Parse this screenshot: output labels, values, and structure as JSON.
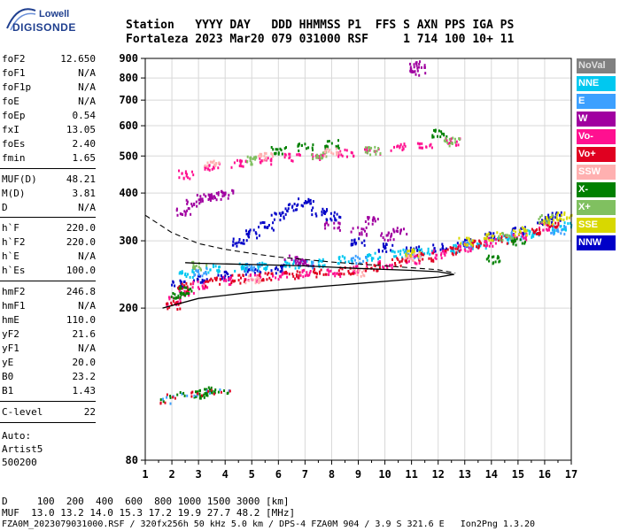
{
  "logo": {
    "line1": "Lowell",
    "line2": "DIGISONDE"
  },
  "header": {
    "row1": "Station   YYYY DAY   DDD HHMMSS P1  FFS S AXN PPS IGA PS",
    "row2": "Fortaleza 2023 Mar20 079 031000 RSF     1 714 100 10+ 11"
  },
  "params": {
    "g1": [
      {
        "name": "foF2",
        "value": "12.650"
      },
      {
        "name": "foF1",
        "value": "N/A"
      },
      {
        "name": "foF1p",
        "value": "N/A"
      },
      {
        "name": "foE",
        "value": "N/A"
      },
      {
        "name": "foEp",
        "value": "0.54"
      },
      {
        "name": "fxI",
        "value": "13.05"
      },
      {
        "name": "foEs",
        "value": "2.40"
      },
      {
        "name": "fmin",
        "value": "1.65"
      }
    ],
    "g2": [
      {
        "name": "MUF(D)",
        "value": "48.21"
      },
      {
        "name": "M(D)",
        "value": "3.81"
      },
      {
        "name": "D",
        "value": "N/A"
      }
    ],
    "g3": [
      {
        "name": "h`F",
        "value": "220.0"
      },
      {
        "name": "h`F2",
        "value": "220.0"
      },
      {
        "name": "h`E",
        "value": "N/A"
      },
      {
        "name": "h`Es",
        "value": "100.0"
      }
    ],
    "g4": [
      {
        "name": "hmF2",
        "value": "246.8"
      },
      {
        "name": "hmF1",
        "value": "N/A"
      },
      {
        "name": "hmE",
        "value": "110.0"
      },
      {
        "name": "yF2",
        "value": "21.6"
      },
      {
        "name": "yF1",
        "value": "N/A"
      },
      {
        "name": "yE",
        "value": "20.0"
      },
      {
        "name": "B0",
        "value": "23.2"
      },
      {
        "name": "B1",
        "value": "1.43"
      }
    ],
    "g5": [
      {
        "name": "C-level",
        "value": "22"
      }
    ]
  },
  "auto": {
    "line1": "Auto:",
    "line2": "Artist5",
    "line3": "500200"
  },
  "footer": {
    "d_row": "D     100  200  400  600  800 1000 1500 3000 [km]",
    "muf_row": "MUF  13.0 13.2 14.0 15.3 17.2 19.9 27.7 48.2 [MHz]",
    "info_row": "FZA0M_2023079031000.RSF / 320fx256h 50 kHz 5.0 km / DPS-4 FZA0M 904 / 3.9 S 321.6 E   Ion2Png 1.3.20"
  },
  "legend": [
    {
      "label": "NoVal",
      "bg": "#808080",
      "fg": "#e0e0e0"
    },
    {
      "label": "NNE",
      "bg": "#00c8f0",
      "fg": "#ffffff"
    },
    {
      "label": "E",
      "bg": "#3ca0ff",
      "fg": "#ffffff"
    },
    {
      "label": "W",
      "bg": "#a000a0",
      "fg": "#ffffff"
    },
    {
      "label": "Vo-",
      "bg": "#ff1090",
      "fg": "#ffffff"
    },
    {
      "label": "Vo+",
      "bg": "#e00020",
      "fg": "#ffffff"
    },
    {
      "label": "SSW",
      "bg": "#ffb0b0",
      "fg": "#ffffff"
    },
    {
      "label": "X-",
      "bg": "#008000",
      "fg": "#ffffff"
    },
    {
      "label": "X+",
      "bg": "#80c060",
      "fg": "#ffffff"
    },
    {
      "label": "SSE",
      "bg": "#d8d800",
      "fg": "#ffffff"
    },
    {
      "label": "NNW",
      "bg": "#0000c8",
      "fg": "#ffffff"
    }
  ],
  "chart_data": {
    "type": "scatter",
    "xlim": [
      1,
      17
    ],
    "ylim": [
      80,
      900
    ],
    "y_scale": "log",
    "x_ticks": [
      "1",
      "2",
      "3",
      "4",
      "5",
      "6",
      "7",
      "8",
      "9",
      "10",
      "11",
      "12",
      "13",
      "14",
      "15",
      "16",
      "17"
    ],
    "y_ticks": [
      80,
      200,
      300,
      400,
      500,
      600,
      700,
      800,
      900
    ],
    "grid": true,
    "echo_traces": [
      {
        "name": "NNW",
        "color": "#0000c8",
        "points": [
          [
            2.2,
            232
          ],
          [
            3.0,
            240
          ],
          [
            4.0,
            245
          ],
          [
            5.0,
            250
          ],
          [
            6.0,
            255
          ],
          [
            4.5,
            300
          ],
          [
            5.0,
            315
          ],
          [
            5.5,
            330
          ],
          [
            6.0,
            350
          ],
          [
            6.5,
            370
          ],
          [
            7.0,
            380
          ],
          [
            7.5,
            360
          ],
          [
            8.0,
            350
          ],
          [
            9.0,
            300
          ],
          [
            10.0,
            290
          ],
          [
            11.0,
            285
          ],
          [
            12.0,
            290
          ],
          [
            13.0,
            300
          ],
          [
            14.0,
            310
          ],
          [
            15.0,
            320
          ],
          [
            16.0,
            340
          ],
          [
            16.3,
            350
          ]
        ]
      },
      {
        "name": "NNE",
        "color": "#00c8f0",
        "points": [
          [
            2.5,
            248
          ],
          [
            3.5,
            255
          ],
          [
            4.5,
            258
          ],
          [
            5.5,
            260
          ],
          [
            6.5,
            262
          ],
          [
            7.5,
            265
          ],
          [
            8.5,
            270
          ],
          [
            9.5,
            275
          ],
          [
            10.5,
            280
          ],
          [
            11.5,
            282
          ],
          [
            12.5,
            288
          ],
          [
            13.5,
            295
          ],
          [
            14.5,
            305
          ],
          [
            15.5,
            315
          ],
          [
            16.5,
            325
          ],
          [
            17.0,
            330
          ]
        ]
      },
      {
        "name": "E",
        "color": "#3ca0ff",
        "points": [
          [
            3.0,
            250
          ],
          [
            5.0,
            258
          ],
          [
            7.0,
            262
          ],
          [
            9.0,
            270
          ],
          [
            11.0,
            280
          ],
          [
            13.0,
            295
          ],
          [
            15.0,
            312
          ],
          [
            16.5,
            322
          ]
        ]
      },
      {
        "name": "Vo-",
        "color": "#ff1090",
        "points": [
          [
            2.0,
            210
          ],
          [
            2.5,
            222
          ],
          [
            3.0,
            232
          ],
          [
            4.0,
            238
          ],
          [
            5.0,
            242
          ],
          [
            6.0,
            245
          ],
          [
            7.0,
            248
          ],
          [
            8.0,
            250
          ],
          [
            9.0,
            255
          ],
          [
            10.0,
            262
          ],
          [
            11.0,
            270
          ],
          [
            12.0,
            278
          ],
          [
            13.0,
            290
          ],
          [
            14.0,
            300
          ],
          [
            15.0,
            310
          ],
          [
            16.0,
            330
          ],
          [
            2.5,
            450
          ],
          [
            3.5,
            470
          ],
          [
            4.5,
            480
          ],
          [
            5.5,
            490
          ],
          [
            6.5,
            500
          ],
          [
            7.5,
            505
          ],
          [
            8.5,
            510
          ],
          [
            9.5,
            520
          ],
          [
            10.5,
            530
          ],
          [
            11.5,
            540
          ],
          [
            12.5,
            550
          ]
        ]
      },
      {
        "name": "Vo+",
        "color": "#e00020",
        "points": [
          [
            2.0,
            205
          ],
          [
            2.5,
            228
          ],
          [
            3.5,
            236
          ],
          [
            4.5,
            240
          ],
          [
            5.5,
            243
          ],
          [
            6.5,
            246
          ],
          [
            7.5,
            249
          ],
          [
            8.5,
            253
          ],
          [
            9.5,
            258
          ],
          [
            10.5,
            266
          ],
          [
            11.5,
            274
          ],
          [
            12.5,
            284
          ],
          [
            13.5,
            295
          ],
          [
            14.5,
            305
          ],
          [
            15.5,
            318
          ],
          [
            16.2,
            335
          ]
        ]
      },
      {
        "name": "W",
        "color": "#a000a0",
        "points": [
          [
            2.4,
            360
          ],
          [
            2.8,
            380
          ],
          [
            3.2,
            390
          ],
          [
            3.6,
            395
          ],
          [
            4.0,
            400
          ],
          [
            6.5,
            270
          ],
          [
            7.0,
            265
          ],
          [
            8.0,
            330
          ],
          [
            9.0,
            320
          ],
          [
            9.5,
            340
          ],
          [
            10.0,
            310
          ],
          [
            10.5,
            320
          ],
          [
            11.2,
            880
          ],
          [
            11.2,
            840
          ]
        ]
      },
      {
        "name": "X-",
        "color": "#008000",
        "points": [
          [
            2.2,
            215
          ],
          [
            2.5,
            225
          ],
          [
            3.0,
            120
          ],
          [
            3.3,
            122
          ],
          [
            6.0,
            520
          ],
          [
            7.0,
            530
          ],
          [
            8.0,
            540
          ],
          [
            12.0,
            575
          ],
          [
            14.0,
            270
          ],
          [
            15.0,
            300
          ]
        ]
      },
      {
        "name": "X+",
        "color": "#80c060",
        "points": [
          [
            3.0,
            260
          ],
          [
            5.0,
            490
          ],
          [
            7.5,
            505
          ],
          [
            9.5,
            520
          ],
          [
            12.5,
            548
          ],
          [
            14.5,
            310
          ],
          [
            16.0,
            345
          ]
        ]
      },
      {
        "name": "SSE",
        "color": "#d8d800",
        "points": [
          [
            11.0,
            280
          ],
          [
            13.0,
            300
          ],
          [
            14.0,
            310
          ],
          [
            15.0,
            320
          ],
          [
            16.2,
            340
          ],
          [
            16.7,
            350
          ]
        ]
      },
      {
        "name": "SSW",
        "color": "#ffb0b0",
        "points": [
          [
            5.0,
            240
          ],
          [
            9.0,
            250
          ],
          [
            11.0,
            275
          ],
          [
            3.5,
            480
          ],
          [
            5.5,
            500
          ],
          [
            8.0,
            515
          ]
        ]
      }
    ],
    "es_layer": {
      "color": "#008000",
      "points": [
        [
          1.7,
          115
        ],
        [
          2.0,
          118
        ],
        [
          2.5,
          120
        ],
        [
          3.0,
          120
        ],
        [
          3.5,
          122
        ],
        [
          4.0,
          122
        ]
      ]
    },
    "profile_solid": [
      [
        1.65,
        200
      ],
      [
        3.0,
        212
      ],
      [
        5.0,
        220
      ],
      [
        7.0,
        226
      ],
      [
        9.0,
        232
      ],
      [
        11.0,
        238
      ],
      [
        12.0,
        241
      ],
      [
        12.6,
        245
      ],
      [
        12.0,
        249
      ],
      [
        11.0,
        251
      ],
      [
        9.0,
        254
      ],
      [
        7.0,
        258
      ],
      [
        5.0,
        260
      ],
      [
        3.0,
        262
      ],
      [
        2.5,
        263
      ]
    ],
    "profile_dashed": [
      [
        1.0,
        350
      ],
      [
        2.0,
        315
      ],
      [
        3.0,
        295
      ],
      [
        4.0,
        285
      ],
      [
        5.0,
        278
      ],
      [
        6.0,
        272
      ],
      [
        7.0,
        268
      ],
      [
        8.0,
        264
      ],
      [
        9.0,
        261
      ],
      [
        10.0,
        258
      ],
      [
        11.0,
        255
      ],
      [
        12.0,
        252
      ],
      [
        12.65,
        247
      ]
    ]
  }
}
